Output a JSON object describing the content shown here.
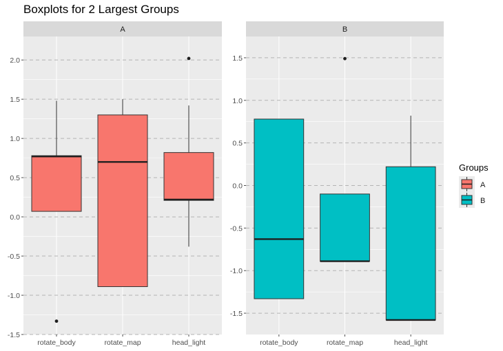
{
  "chart_data": {
    "type": "boxplot",
    "title": "Boxplots for 2 Largest Groups",
    "legend": {
      "title": "Groups",
      "placement": "right",
      "items": [
        {
          "label": "A",
          "color": "#F8766D"
        },
        {
          "label": "B",
          "color": "#00BFC4"
        }
      ]
    },
    "grid": true,
    "panels": [
      {
        "label": "A",
        "group": "A",
        "color": "#F8766D",
        "ylim": [
          -1.5,
          2.3
        ],
        "yticks": [
          "-1.5",
          "-1.0",
          "-0.5",
          "0.0",
          "0.5",
          "1.0",
          "1.5",
          "2.0"
        ],
        "categories": [
          "rotate_body",
          "rotate_map",
          "head_light"
        ],
        "boxes": [
          {
            "category": "rotate_body",
            "q1": 0.07,
            "median": 0.77,
            "q3": 0.78,
            "whisker_low": 0.07,
            "whisker_high": 1.48,
            "outliers": [
              -1.33
            ]
          },
          {
            "category": "rotate_map",
            "q1": -0.89,
            "median": 0.7,
            "q3": 1.3,
            "whisker_low": -0.89,
            "whisker_high": 1.5,
            "outliers": []
          },
          {
            "category": "head_light",
            "q1": 0.21,
            "median": 0.22,
            "q3": 0.82,
            "whisker_low": -0.38,
            "whisker_high": 1.42,
            "outliers": [
              2.02
            ]
          }
        ]
      },
      {
        "label": "B",
        "group": "B",
        "color": "#00BFC4",
        "ylim": [
          -1.75,
          1.75
        ],
        "yticks": [
          "-1.5",
          "-1.0",
          "-0.5",
          "0.0",
          "0.5",
          "1.0",
          "1.5"
        ],
        "categories": [
          "rotate_body",
          "rotate_map",
          "head_light"
        ],
        "boxes": [
          {
            "category": "rotate_body",
            "q1": -1.33,
            "median": -0.63,
            "q3": 0.78,
            "whisker_low": -1.33,
            "whisker_high": 0.78,
            "outliers": []
          },
          {
            "category": "rotate_map",
            "q1": -0.89,
            "median": -0.89,
            "q3": -0.1,
            "whisker_low": -0.89,
            "whisker_high": -0.1,
            "outliers": [
              1.49
            ]
          },
          {
            "category": "head_light",
            "q1": -1.58,
            "median": -1.58,
            "q3": 0.22,
            "whisker_low": -1.58,
            "whisker_high": 0.82,
            "outliers": []
          }
        ]
      }
    ]
  }
}
